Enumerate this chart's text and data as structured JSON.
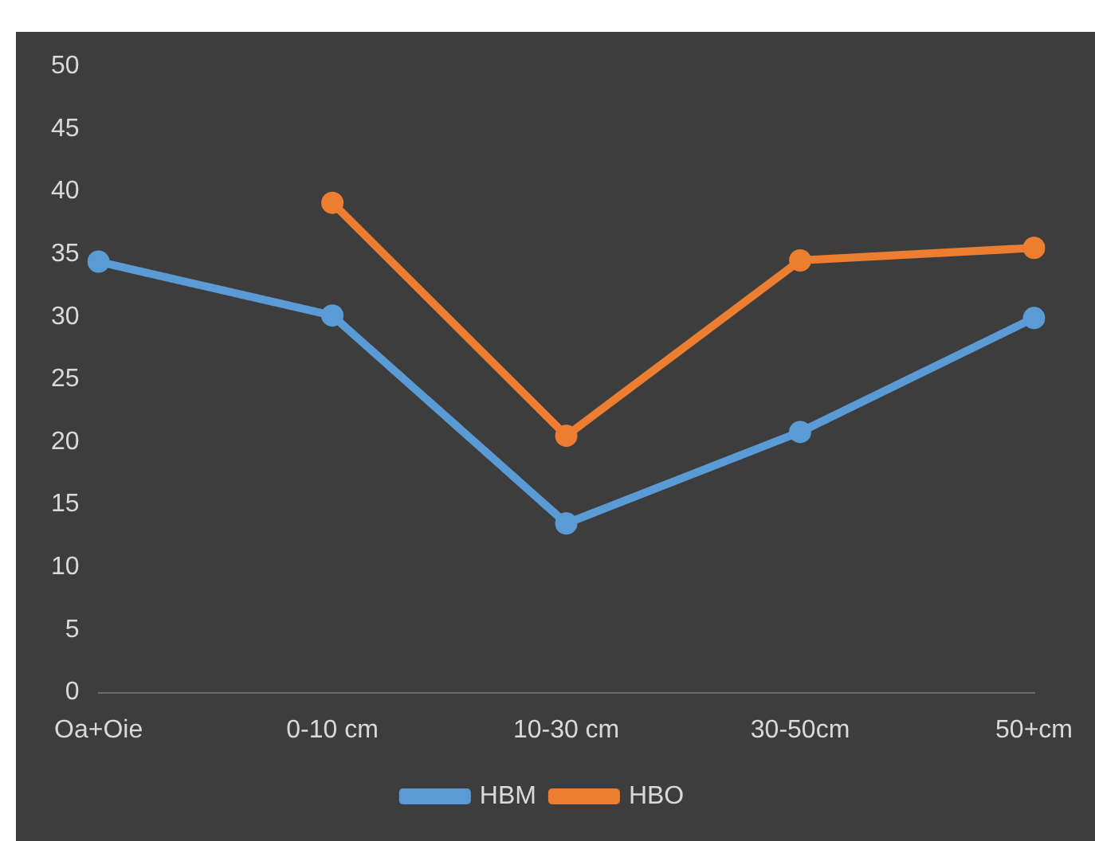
{
  "chart_data": {
    "type": "line",
    "categories": [
      "Oa+Oie",
      "0-10 cm",
      "10-30 cm",
      "30-50cm",
      "50+cm"
    ],
    "series": [
      {
        "name": "HBM",
        "color": "#5b9bd5",
        "values": [
          34.4,
          30.1,
          13.5,
          20.8,
          29.9
        ]
      },
      {
        "name": "HBO",
        "color": "#ed7d31",
        "values": [
          null,
          39.1,
          20.5,
          34.5,
          35.5
        ]
      }
    ],
    "ylim": [
      0,
      50
    ],
    "yticks": [
      0,
      5,
      10,
      15,
      20,
      25,
      30,
      35,
      40,
      45,
      50
    ],
    "grid": false,
    "legend": "bottom",
    "marker": "circle",
    "line_style": "solid"
  }
}
